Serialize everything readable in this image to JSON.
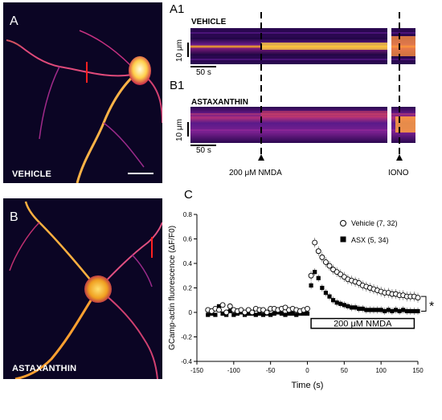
{
  "panels": {
    "a": {
      "letter": "A",
      "caption": "VEHICLE"
    },
    "b": {
      "letter": "B",
      "caption": "ASTAXANTHIN"
    },
    "a1": {
      "letter": "A1",
      "caption": "VEHICLE",
      "scale_y": "10 μm",
      "scale_x": "50 s"
    },
    "b1": {
      "letter": "B1",
      "caption": "ASTAXANTHIN",
      "scale_y": "10 μm",
      "scale_x": "50 s"
    },
    "markers": {
      "nmda": "200 μM NMDA",
      "iono": "IONO"
    },
    "c": {
      "letter": "C"
    }
  },
  "chart_data": {
    "type": "scatter",
    "xlabel": "Time (s)",
    "ylabel": "GCamp-actin fluorescence (ΔF/F0)",
    "xlim": [
      -150,
      150
    ],
    "ylim": [
      -0.4,
      0.8
    ],
    "xticks": [
      -150,
      -100,
      -50,
      0,
      50,
      100,
      150
    ],
    "yticks": [
      -0.4,
      -0.2,
      0,
      0.2,
      0.4,
      0.6,
      0.8
    ],
    "significance": "*",
    "bar_label": "200 μM NMDA",
    "bar_range": [
      5,
      145
    ],
    "legend_position": "top-right",
    "series": [
      {
        "name": "Vehicle (7, 32)",
        "marker": "open-circle",
        "x": [
          -135,
          -130,
          -125,
          -120,
          -115,
          -110,
          -105,
          -100,
          -95,
          -90,
          -85,
          -80,
          -75,
          -70,
          -65,
          -60,
          -55,
          -50,
          -45,
          -40,
          -35,
          -30,
          -25,
          -20,
          -15,
          -10,
          -5,
          0,
          5,
          10,
          15,
          20,
          25,
          30,
          35,
          40,
          45,
          50,
          55,
          60,
          65,
          70,
          75,
          80,
          85,
          90,
          95,
          100,
          105,
          110,
          115,
          120,
          125,
          130,
          135,
          140,
          145,
          150
        ],
        "y": [
          0.02,
          0.01,
          0.03,
          0.02,
          0.06,
          0.0,
          0.05,
          0.02,
          0.01,
          0.02,
          0.0,
          0.02,
          0.0,
          0.03,
          0.02,
          0.02,
          0.0,
          0.03,
          0.03,
          0.02,
          0.03,
          0.04,
          0.02,
          0.03,
          0.02,
          0.01,
          0.02,
          0.03,
          0.3,
          0.57,
          0.5,
          0.45,
          0.41,
          0.38,
          0.35,
          0.33,
          0.31,
          0.29,
          0.27,
          0.26,
          0.25,
          0.24,
          0.22,
          0.21,
          0.2,
          0.19,
          0.18,
          0.17,
          0.16,
          0.16,
          0.15,
          0.15,
          0.14,
          0.14,
          0.13,
          0.13,
          0.13,
          0.12
        ]
      },
      {
        "name": "ASX (5, 34)",
        "marker": "filled-square",
        "x": [
          -135,
          -130,
          -125,
          -120,
          -115,
          -110,
          -105,
          -100,
          -95,
          -90,
          -85,
          -80,
          -75,
          -70,
          -65,
          -60,
          -55,
          -50,
          -45,
          -40,
          -35,
          -30,
          -25,
          -20,
          -15,
          -10,
          -5,
          0,
          5,
          10,
          15,
          20,
          25,
          30,
          35,
          40,
          45,
          50,
          55,
          60,
          65,
          70,
          75,
          80,
          85,
          90,
          95,
          100,
          105,
          110,
          115,
          120,
          125,
          130,
          135,
          140,
          145,
          150
        ],
        "y": [
          -0.02,
          -0.01,
          -0.02,
          0.05,
          -0.01,
          -0.02,
          0.01,
          -0.02,
          -0.01,
          0.0,
          -0.02,
          -0.01,
          -0.01,
          -0.02,
          -0.01,
          -0.02,
          -0.01,
          -0.02,
          -0.01,
          0.0,
          -0.01,
          -0.02,
          -0.01,
          -0.01,
          -0.02,
          -0.01,
          -0.01,
          -0.01,
          0.22,
          0.33,
          0.28,
          0.2,
          0.16,
          0.13,
          0.1,
          0.08,
          0.07,
          0.06,
          0.05,
          0.04,
          0.04,
          0.03,
          0.03,
          0.02,
          0.02,
          0.02,
          0.02,
          0.02,
          0.01,
          0.02,
          0.01,
          0.02,
          0.01,
          0.02,
          0.01,
          0.01,
          0.01,
          0.01
        ]
      }
    ]
  }
}
